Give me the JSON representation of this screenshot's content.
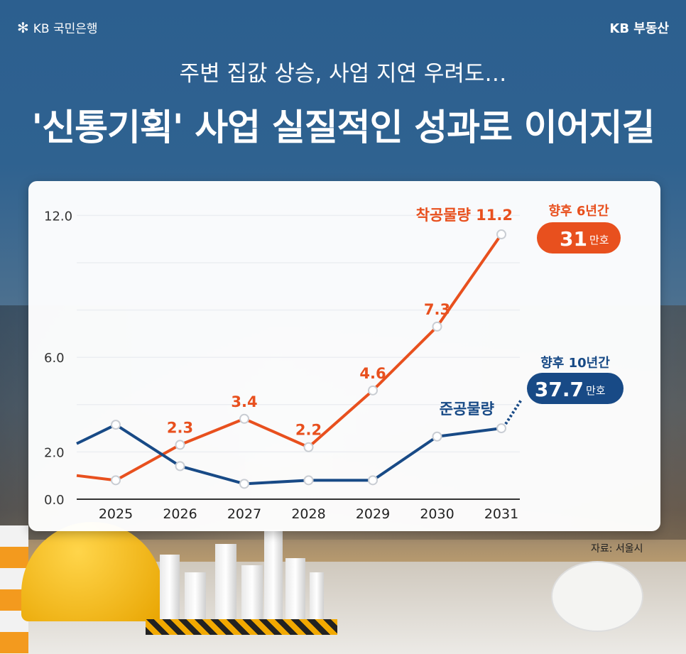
{
  "header": {
    "bank_logo": "KB 국민은행",
    "brand": "KB 부동산"
  },
  "subtitle": "주변 집값 상승, 사업 지연 우려도…",
  "title": "'신통기획' 사업 실질적인 성과로 이어지길",
  "source": "자료: 서울시",
  "colors": {
    "start": "#e8501e",
    "completion": "#184a86",
    "background": "#2c5f8f"
  },
  "chart_data": {
    "type": "line",
    "categories": [
      "2025",
      "2026",
      "2027",
      "2028",
      "2029",
      "2030",
      "2031"
    ],
    "x_extended_before": "2024",
    "yticks": [
      "0.0",
      "2.0",
      "6.0",
      "12.0"
    ],
    "ytick_values": [
      0,
      2,
      6,
      12
    ],
    "ylim": [
      0,
      12.5
    ],
    "grid": true,
    "series": [
      {
        "name": "착공물량",
        "label": "착공물량 11.2",
        "color": "#e8501e",
        "prior_value": 1.0,
        "values": [
          0.8,
          2.3,
          3.4,
          2.2,
          4.6,
          7.3,
          11.2
        ],
        "data_labels": [
          "",
          "2.3",
          "3.4",
          "2.2",
          "4.6",
          "7.3",
          ""
        ]
      },
      {
        "name": "준공물량",
        "label": "준공물량",
        "color": "#184a86",
        "prior_value": 2.35,
        "values": [
          3.15,
          1.4,
          0.65,
          0.8,
          0.8,
          2.65,
          3.0
        ],
        "projected_next": 4.2
      }
    ],
    "annotations": [
      {
        "heading": "향후 6년간",
        "value": "31",
        "unit": "만호",
        "color": "#e8501e"
      },
      {
        "heading": "향후 10년간",
        "value": "37.7",
        "unit": "만호",
        "color": "#184a86"
      }
    ]
  }
}
